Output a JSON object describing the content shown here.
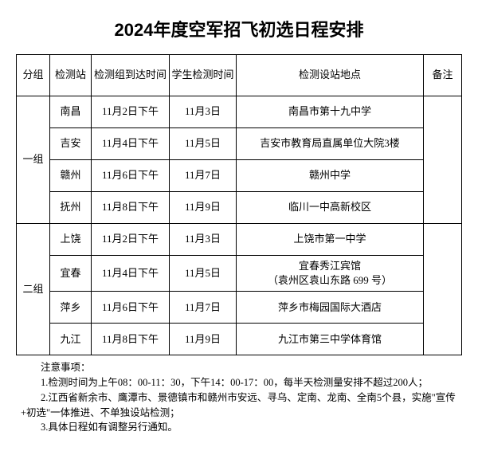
{
  "title": "2024年度空军招飞初选日程安排",
  "headers": {
    "group": "分组",
    "station": "检测站",
    "arrive": "检测组到达时间",
    "check": "学生检测时间",
    "location": "检测设站地点",
    "note": "备注"
  },
  "groups": [
    {
      "name": "一组",
      "rows": [
        {
          "station": "南昌",
          "arrive": "11月2日下午",
          "check": "11月3日",
          "location": "南昌市第十九中学"
        },
        {
          "station": "吉安",
          "arrive": "11月4日下午",
          "check": "11月5日",
          "location": "吉安市教育局直属单位大院3楼"
        },
        {
          "station": "赣州",
          "arrive": "11月6日下午",
          "check": "11月7日",
          "location": "赣州中学"
        },
        {
          "station": "抚州",
          "arrive": "11月8日下午",
          "check": "11月9日",
          "location": "临川一中高新校区"
        }
      ]
    },
    {
      "name": "二组",
      "rows": [
        {
          "station": "上饶",
          "arrive": "11月2日下午",
          "check": "11月3日",
          "location": "上饶市第一中学"
        },
        {
          "station": "宜春",
          "arrive": "11月4日下午",
          "check": "11月5日",
          "location": "宜春秀江宾馆\n（袁州区袁山东路 699 号）"
        },
        {
          "station": "萍乡",
          "arrive": "11月6日下午",
          "check": "11月7日",
          "location": "萍乡市梅园国际大酒店"
        },
        {
          "station": "九江",
          "arrive": "11月8日下午",
          "check": "11月9日",
          "location": "九江市第三中学体育馆"
        }
      ]
    }
  ],
  "notes": {
    "heading": "注意事项：",
    "items": [
      "1.检测时间为上午08：00-11：30，下午14：00-17：00，每半天检测量安排不超过200人；",
      "2.江西省新余市、鹰潭市、景德镇市和赣州市安远、寻乌、定南、龙南、全南5个县，实施\"宣传+初选\"一体推进、不单独设站检测；",
      "3.具体日程如有调整另行通知。"
    ]
  },
  "styling": {
    "background": "#ffffff",
    "text_color": "#000000",
    "border_color": "#000000",
    "title_fontsize": 22,
    "body_fontsize": 13,
    "notes_fontsize": 12.5
  }
}
